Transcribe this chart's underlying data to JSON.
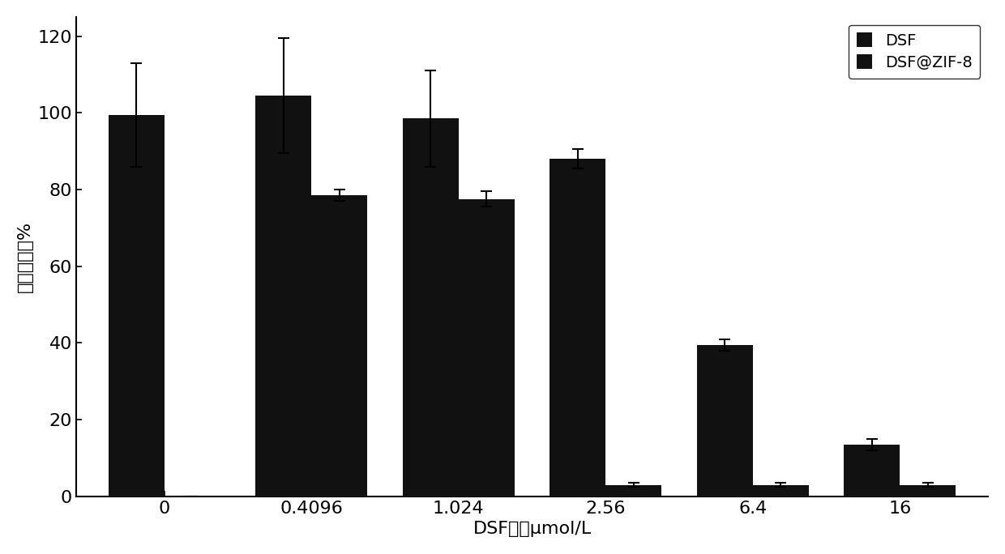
{
  "categories": [
    "0",
    "0.4096",
    "1.024",
    "2.56",
    "6.4",
    "16"
  ],
  "xlabel": "DSF浓度μmol/L",
  "ylabel": "细胞存活率%",
  "ylim": [
    0,
    125
  ],
  "yticks": [
    0,
    20,
    40,
    60,
    80,
    100,
    120
  ],
  "legend_labels": [
    "DSF",
    "DSF@ZIF-8"
  ],
  "bar_color_dsf": "#111111",
  "bar_color_zif": "#111111",
  "dsf_values": [
    99.5,
    104.5,
    98.5,
    88.0,
    39.5,
    13.5
  ],
  "dsf_errors": [
    13.5,
    15.0,
    12.5,
    2.5,
    1.5,
    1.5
  ],
  "zif_values": [
    0.0,
    78.5,
    77.5,
    3.0,
    3.0,
    3.0
  ],
  "zif_errors": [
    0.0,
    1.5,
    2.0,
    0.5,
    0.5,
    0.5
  ],
  "bar_width": 0.38,
  "figsize": [
    12.4,
    6.84
  ],
  "dpi": 100,
  "background_color": "#ffffff",
  "tick_fontsize": 16,
  "label_fontsize": 16,
  "legend_fontsize": 14
}
